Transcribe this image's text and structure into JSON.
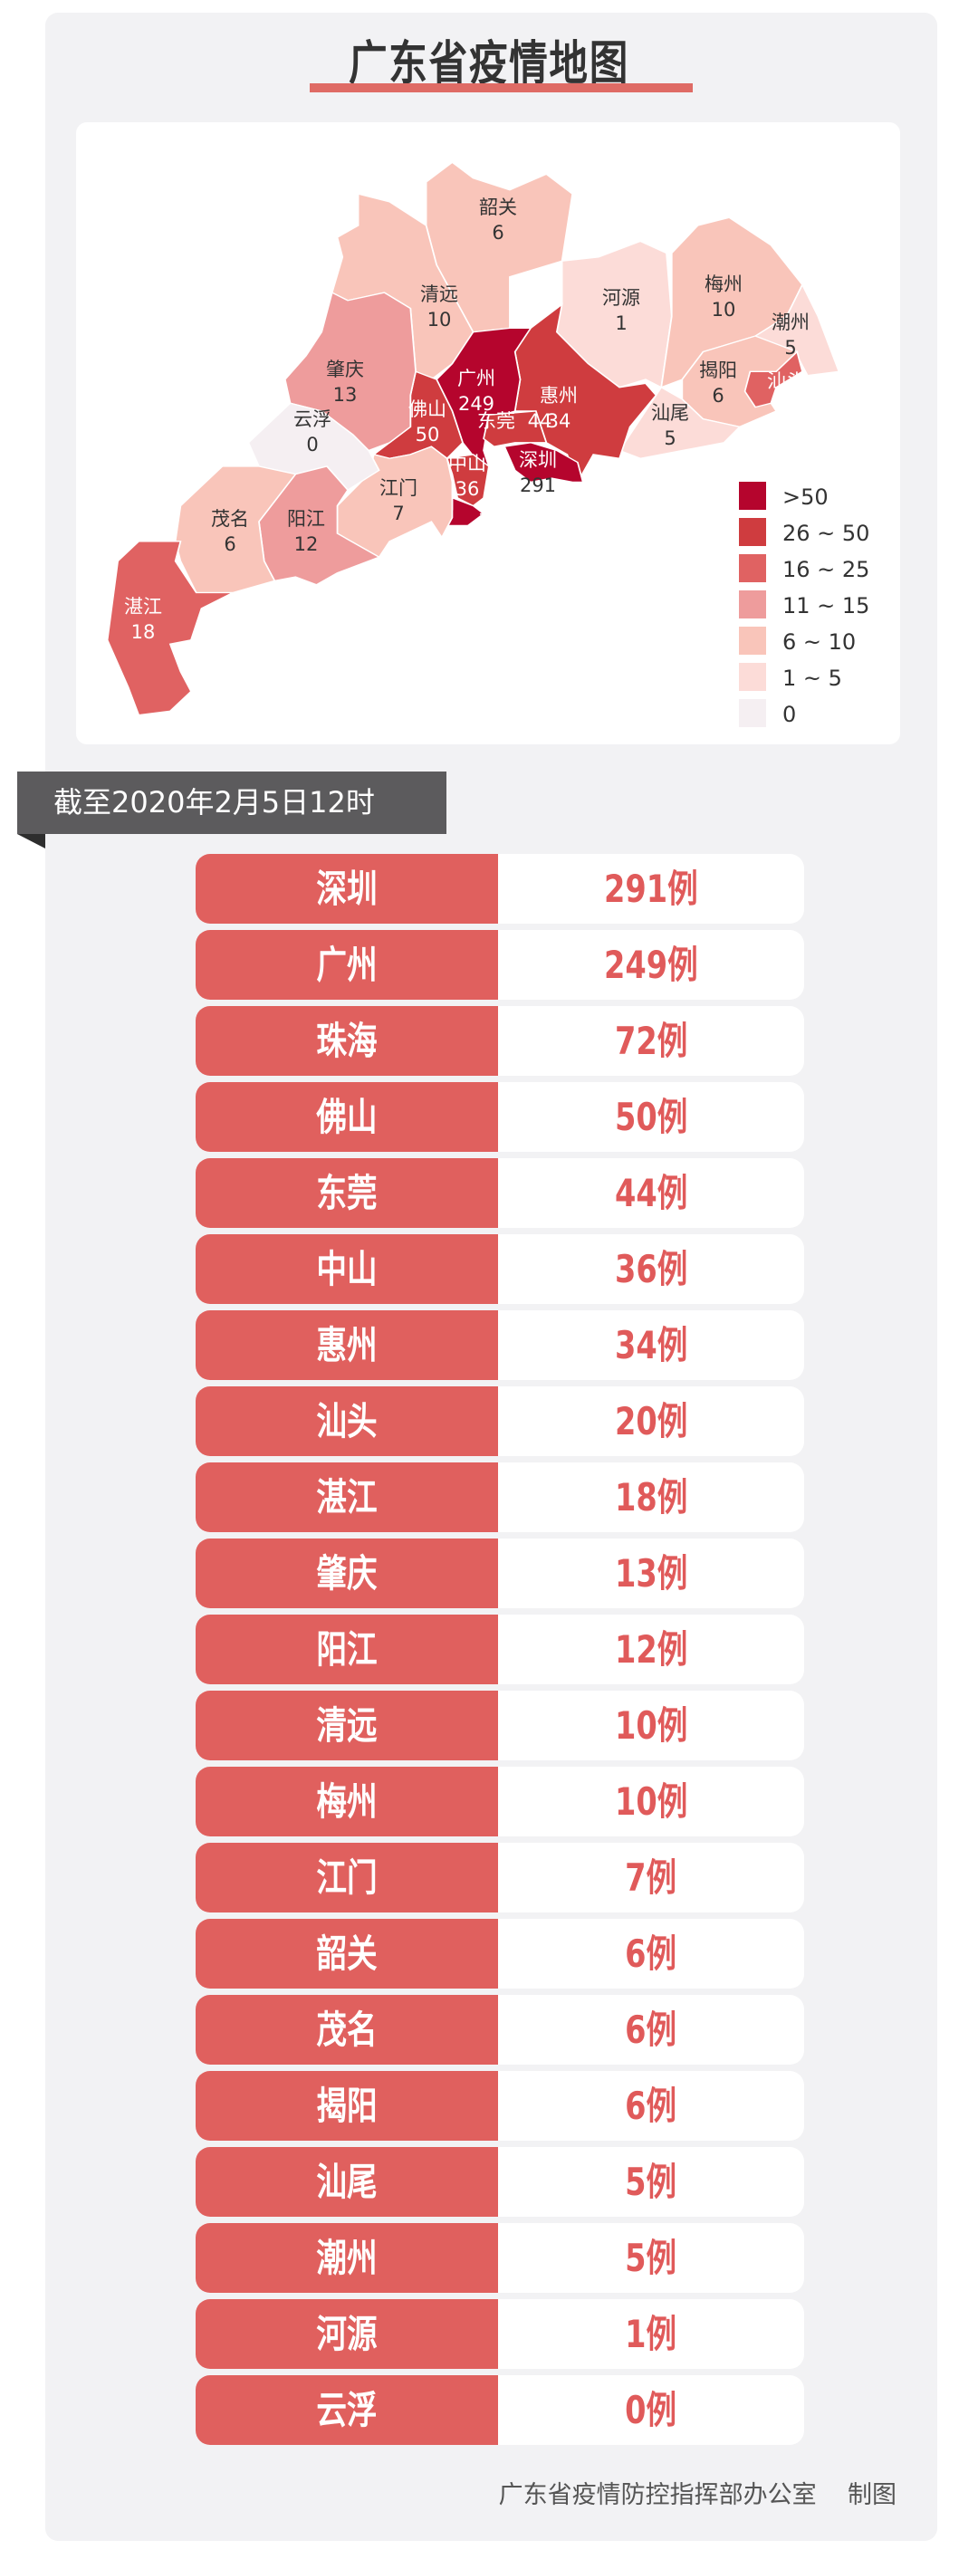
{
  "title": "广东省疫情地图",
  "as_of": "截至2020年2月5日12时",
  "legend": [
    {
      "label": ">50",
      "color": "#b5052d"
    },
    {
      "label": "26 ~ 50",
      "color": "#cf3c3f"
    },
    {
      "label": "16 ~ 25",
      "color": "#e06262"
    },
    {
      "label": "11 ~ 15",
      "color": "#ee9c9c"
    },
    {
      "label": "6 ~ 10",
      "color": "#f9c5ba"
    },
    {
      "label": "1 ~ 5",
      "color": "#fcdcd8"
    },
    {
      "label": "0",
      "color": "#f5eff2"
    }
  ],
  "map_regions": [
    {
      "name": "韶关",
      "count": "6",
      "tier": 4
    },
    {
      "name": "清远",
      "count": "10",
      "tier": 4
    },
    {
      "name": "河源",
      "count": "1",
      "tier": 5
    },
    {
      "name": "梅州",
      "count": "10",
      "tier": 4
    },
    {
      "name": "潮州",
      "count": "5",
      "tier": 5
    },
    {
      "name": "揭阳",
      "count": "6",
      "tier": 4
    },
    {
      "name": "汕头",
      "count": "20",
      "tier": 2
    },
    {
      "name": "汕尾",
      "count": "5",
      "tier": 5
    },
    {
      "name": "惠州",
      "count": "34",
      "tier": 1
    },
    {
      "name": "广州",
      "count": "249",
      "tier": 0
    },
    {
      "name": "东莞",
      "count": "44",
      "tier": 1
    },
    {
      "name": "深圳",
      "count": "291",
      "tier": 0
    },
    {
      "name": "佛山",
      "count": "50",
      "tier": 1
    },
    {
      "name": "中山",
      "count": "36",
      "tier": 1
    },
    {
      "name": "珠海",
      "count": "72",
      "tier": 0
    },
    {
      "name": "江门",
      "count": "7",
      "tier": 4
    },
    {
      "name": "肇庆",
      "count": "13",
      "tier": 3
    },
    {
      "name": "云浮",
      "count": "0",
      "tier": 6
    },
    {
      "name": "阳江",
      "count": "12",
      "tier": 3
    },
    {
      "name": "茂名",
      "count": "6",
      "tier": 4
    },
    {
      "name": "湛江",
      "count": "18",
      "tier": 2
    }
  ],
  "rows": [
    {
      "city": "深圳",
      "count": "291例"
    },
    {
      "city": "广州",
      "count": "249例"
    },
    {
      "city": "珠海",
      "count": "72例"
    },
    {
      "city": "佛山",
      "count": "50例"
    },
    {
      "city": "东莞",
      "count": "44例"
    },
    {
      "city": "中山",
      "count": "36例"
    },
    {
      "city": "惠州",
      "count": "34例"
    },
    {
      "city": "汕头",
      "count": "20例"
    },
    {
      "city": "湛江",
      "count": "18例"
    },
    {
      "city": "肇庆",
      "count": "13例"
    },
    {
      "city": "阳江",
      "count": "12例"
    },
    {
      "city": "清远",
      "count": "10例"
    },
    {
      "city": "梅州",
      "count": "10例"
    },
    {
      "city": "江门",
      "count": "7例"
    },
    {
      "city": "韶关",
      "count": "6例"
    },
    {
      "city": "茂名",
      "count": "6例"
    },
    {
      "city": "揭阳",
      "count": "6例"
    },
    {
      "city": "汕尾",
      "count": "5例"
    },
    {
      "city": "潮州",
      "count": "5例"
    },
    {
      "city": "河源",
      "count": "1例"
    },
    {
      "city": "云浮",
      "count": "0例"
    }
  ],
  "footer": "广东省疫情防控指挥部办公室    制图"
}
